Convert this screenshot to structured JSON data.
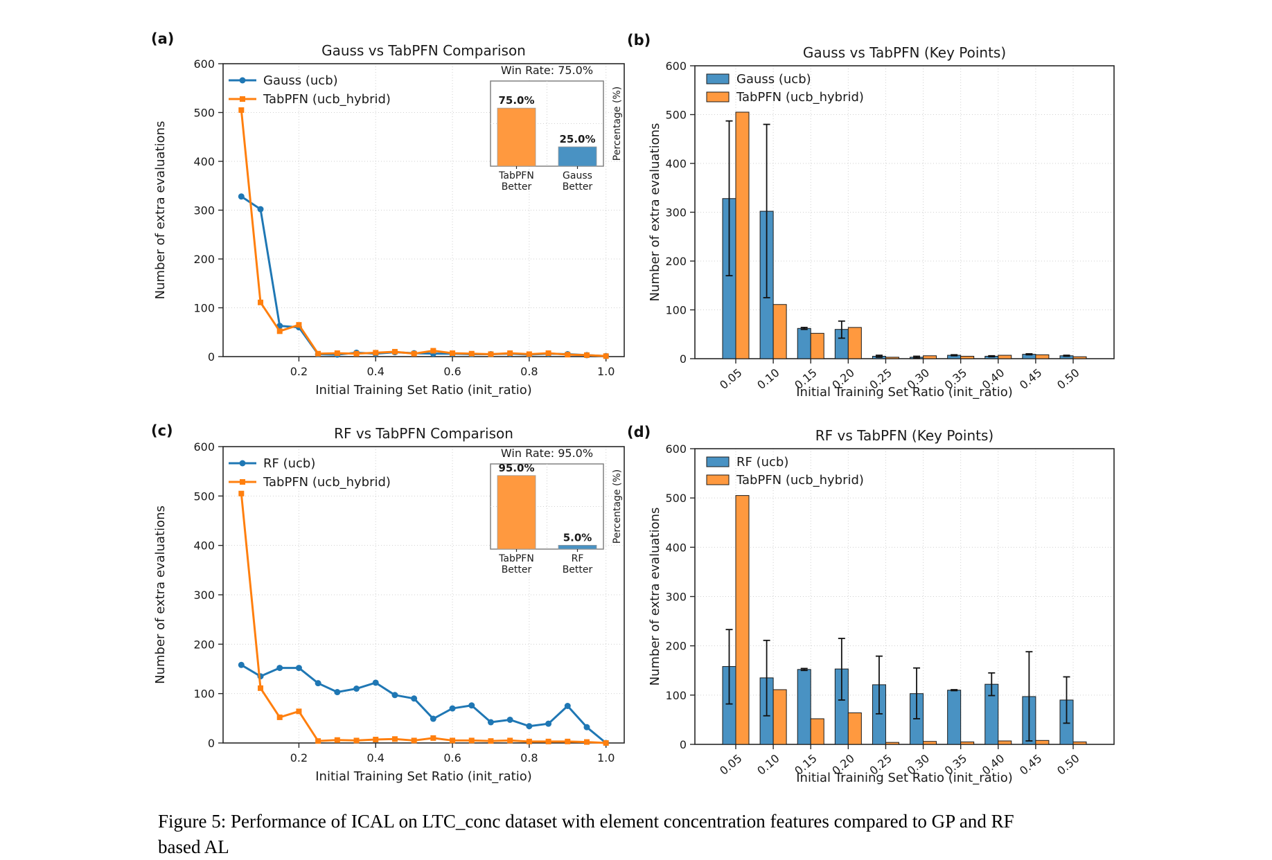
{
  "figure": {
    "caption_line1": "Figure 5: Performance of ICAL on LTC_conc dataset with element concentration features compared to GP and RF",
    "caption_line2": "based AL"
  },
  "colors": {
    "line_blue": "#1f77b4",
    "line_orange": "#ff7f0e",
    "bar_blue": "#4992C3",
    "bar_orange": "#FF993F",
    "grid": "#cfcfcf",
    "spine": "#262626"
  },
  "chart_data": [
    {
      "key": "a",
      "tag": "(a)",
      "type": "line",
      "title": "Gauss vs TabPFN Comparison",
      "xlabel": "Initial Training Set Ratio (init_ratio)",
      "ylabel": "Number of extra evaluations",
      "xlim": [
        0,
        1.05
      ],
      "ylim": [
        0,
        600
      ],
      "grid": true,
      "legend_position": "upper-left",
      "xticks": [
        0.2,
        0.4,
        0.6,
        0.8,
        1.0
      ],
      "yticks": [
        0,
        100,
        200,
        300,
        400,
        500,
        600
      ],
      "x": [
        0.05,
        0.1,
        0.15,
        0.2,
        0.25,
        0.3,
        0.35,
        0.4,
        0.45,
        0.5,
        0.55,
        0.6,
        0.65,
        0.7,
        0.75,
        0.8,
        0.85,
        0.9,
        0.95,
        1.0
      ],
      "series": [
        {
          "name": "Gauss (ucb)",
          "color": "#1f77b4",
          "marker": "circle",
          "values": [
            328,
            302,
            63,
            60,
            5,
            4,
            8,
            6,
            9,
            7,
            6,
            6,
            5,
            5,
            6,
            4,
            6,
            5,
            3,
            1
          ]
        },
        {
          "name": "TabPFN (ucb_hybrid)",
          "color": "#ff7f0e",
          "marker": "square",
          "values": [
            505,
            111,
            52,
            65,
            6,
            7,
            6,
            8,
            10,
            6,
            12,
            7,
            6,
            5,
            7,
            5,
            7,
            4,
            3,
            1
          ]
        }
      ],
      "inset": {
        "title": "Win Rate: 75.0%",
        "ylabel": "Percentage (%)",
        "bars": [
          {
            "label": [
              "TabPFN",
              "Better"
            ],
            "value": 75.0,
            "text": "75.0%",
            "color": "#FF993F"
          },
          {
            "label": [
              "Gauss",
              "Better"
            ],
            "value": 25.0,
            "text": "25.0%",
            "color": "#4992C3"
          }
        ]
      }
    },
    {
      "key": "b",
      "tag": "(b)",
      "type": "bar",
      "title": "Gauss vs TabPFN (Key Points)",
      "xlabel": "Initial Training Set Ratio (init_ratio)",
      "ylabel": "Number of extra evaluations",
      "ylim": [
        0,
        600
      ],
      "grid": true,
      "legend_position": "upper-left",
      "yticks": [
        0,
        100,
        200,
        300,
        400,
        500,
        600
      ],
      "categories": [
        "0.05",
        "0.10",
        "0.15",
        "0.20",
        "0.25",
        "0.30",
        "0.35",
        "0.40",
        "0.45",
        "0.50"
      ],
      "series": [
        {
          "name": "Gauss (ucb)",
          "color": "#4992C3",
          "values": [
            328,
            302,
            62,
            60,
            5,
            3,
            7,
            5,
            9,
            6
          ],
          "err_minus": [
            158,
            177,
            2,
            18,
            2,
            1,
            1,
            1,
            1,
            1
          ],
          "err_plus": [
            159,
            178,
            2,
            17,
            2,
            2,
            1,
            1,
            1,
            1
          ]
        },
        {
          "name": "TabPFN (ucb_hybrid)",
          "color": "#FF993F",
          "values": [
            505,
            111,
            52,
            64,
            3,
            6,
            5,
            7,
            8,
            4
          ],
          "err_minus": null,
          "err_plus": null
        }
      ]
    },
    {
      "key": "c",
      "tag": "(c)",
      "type": "line",
      "title": "RF vs TabPFN Comparison",
      "xlabel": "Initial Training Set Ratio (init_ratio)",
      "ylabel": "Number of extra evaluations",
      "xlim": [
        0,
        1.05
      ],
      "ylim": [
        0,
        600
      ],
      "grid": true,
      "legend_position": "upper-left",
      "xticks": [
        0.2,
        0.4,
        0.6,
        0.8,
        1.0
      ],
      "yticks": [
        0,
        100,
        200,
        300,
        400,
        500,
        600
      ],
      "x": [
        0.05,
        0.1,
        0.15,
        0.2,
        0.25,
        0.3,
        0.35,
        0.4,
        0.45,
        0.5,
        0.55,
        0.6,
        0.65,
        0.7,
        0.75,
        0.8,
        0.85,
        0.9,
        0.95,
        1.0
      ],
      "series": [
        {
          "name": "RF (ucb)",
          "color": "#1f77b4",
          "marker": "circle",
          "values": [
            158,
            135,
            152,
            152,
            121,
            103,
            110,
            122,
            97,
            90,
            49,
            70,
            76,
            42,
            47,
            34,
            39,
            75,
            32,
            0
          ]
        },
        {
          "name": "TabPFN (ucb_hybrid)",
          "color": "#ff7f0e",
          "marker": "square",
          "values": [
            505,
            111,
            52,
            64,
            4,
            6,
            5,
            7,
            8,
            5,
            10,
            5,
            5,
            4,
            5,
            3,
            3,
            3,
            2,
            0
          ]
        }
      ],
      "inset": {
        "title": "Win Rate: 95.0%",
        "ylabel": "Percentage (%)",
        "bars": [
          {
            "label": [
              "TabPFN",
              "Better"
            ],
            "value": 95.0,
            "text": "95.0%",
            "color": "#FF993F"
          },
          {
            "label": [
              "RF",
              "Better"
            ],
            "value": 5.0,
            "text": "5.0%",
            "color": "#4992C3"
          }
        ]
      }
    },
    {
      "key": "d",
      "tag": "(d)",
      "type": "bar",
      "title": "RF vs TabPFN (Key Points)",
      "xlabel": "Initial Training Set Ratio (init_ratio)",
      "ylabel": "Number of extra evaluations",
      "ylim": [
        0,
        600
      ],
      "grid": true,
      "legend_position": "upper-left",
      "yticks": [
        0,
        100,
        200,
        300,
        400,
        500,
        600
      ],
      "categories": [
        "0.05",
        "0.10",
        "0.15",
        "0.20",
        "0.25",
        "0.30",
        "0.35",
        "0.40",
        "0.45",
        "0.50"
      ],
      "series": [
        {
          "name": "RF (ucb)",
          "color": "#4992C3",
          "values": [
            158,
            135,
            152,
            153,
            121,
            103,
            110,
            122,
            97,
            90
          ],
          "err_minus": [
            76,
            77,
            2,
            63,
            59,
            51,
            1,
            23,
            90,
            47
          ],
          "err_plus": [
            75,
            76,
            2,
            62,
            58,
            52,
            1,
            23,
            91,
            47
          ]
        },
        {
          "name": "TabPFN (ucb_hybrid)",
          "color": "#FF993F",
          "values": [
            505,
            111,
            52,
            64,
            4,
            6,
            5,
            7,
            8,
            5
          ],
          "err_minus": null,
          "err_plus": null
        }
      ]
    }
  ]
}
